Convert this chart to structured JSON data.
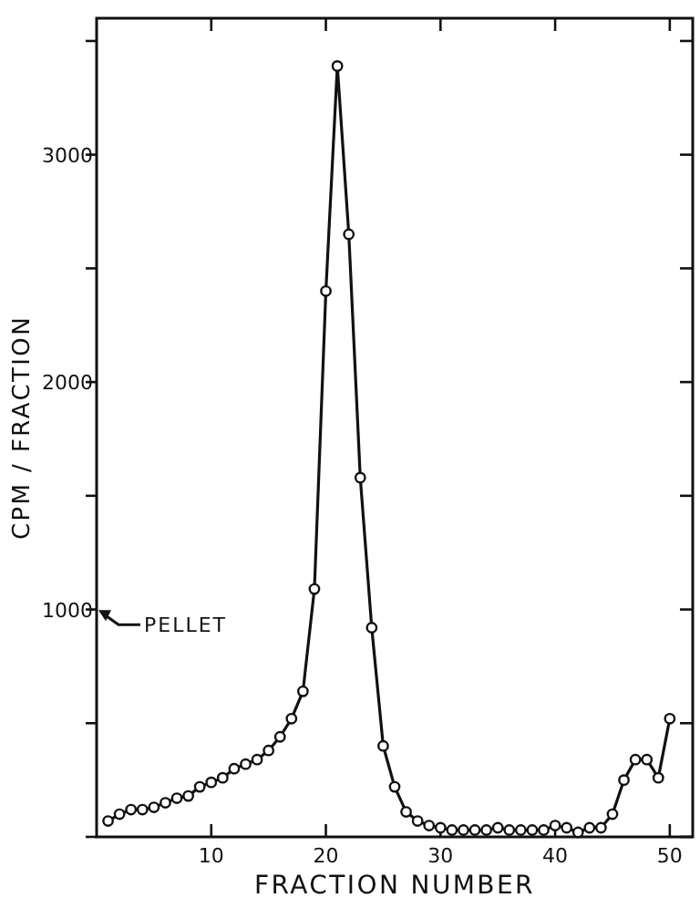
{
  "chart_data": {
    "type": "line",
    "xlabel": "FRACTION NUMBER",
    "ylabel": "CPM / FRACTION",
    "x": [
      1,
      2,
      3,
      4,
      5,
      6,
      7,
      8,
      9,
      10,
      11,
      12,
      13,
      14,
      15,
      16,
      17,
      18,
      19,
      20,
      21,
      22,
      23,
      24,
      25,
      26,
      27,
      28,
      29,
      30,
      31,
      32,
      33,
      34,
      35,
      36,
      37,
      38,
      39,
      40,
      41,
      42,
      43,
      44,
      45,
      46,
      47,
      48,
      49,
      50
    ],
    "series": [
      {
        "color": "#111111",
        "values": [
          70,
          100,
          120,
          120,
          130,
          150,
          170,
          180,
          220,
          240,
          260,
          300,
          320,
          340,
          380,
          440,
          520,
          640,
          1090,
          2400,
          3390,
          2650,
          1580,
          920,
          400,
          220,
          110,
          70,
          50,
          40,
          30,
          30,
          30,
          30,
          40,
          30,
          30,
          30,
          30,
          50,
          40,
          20,
          40,
          40,
          100,
          250,
          340,
          340,
          260,
          520
        ]
      }
    ],
    "xlim": [
      0,
      52
    ],
    "xticks": [
      10,
      20,
      30,
      40,
      50
    ],
    "ylim": [
      0,
      3600
    ],
    "yticks": [
      {
        "value": 0,
        "label": null
      },
      {
        "value": 500,
        "label": null
      },
      1000,
      {
        "value": 1500,
        "label": null
      },
      2000,
      {
        "value": 2500,
        "label": null
      },
      3000,
      {
        "value": 3500,
        "label": null
      }
    ],
    "marker": "circle",
    "line_style": "solid",
    "grid": false,
    "annotations": [
      "PELLET"
    ]
  }
}
